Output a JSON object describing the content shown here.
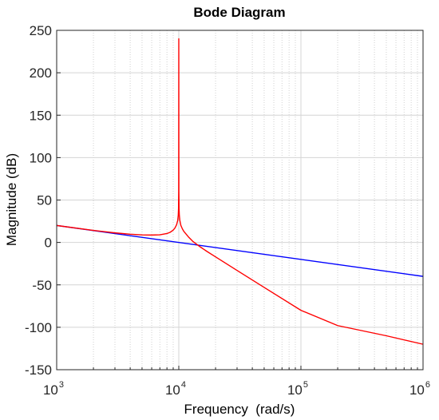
{
  "chart_data": {
    "type": "line",
    "title": "Bode Diagram",
    "xlabel": "Frequency  (rad/s)",
    "ylabel": "Magnitude (dB)",
    "x_scale": "log",
    "xlim": [
      1000,
      1000000
    ],
    "ylim": [
      -150,
      250
    ],
    "x_ticks": [
      {
        "base": "10",
        "exp": "3"
      },
      {
        "base": "10",
        "exp": "4"
      },
      {
        "base": "10",
        "exp": "5"
      },
      {
        "base": "10",
        "exp": "6"
      }
    ],
    "y_ticks": [
      "250",
      "200",
      "150",
      "100",
      "50",
      "0",
      "-50",
      "-100",
      "-150"
    ],
    "grid": true,
    "series": [
      {
        "color": "#0000ff",
        "x": [
          1000,
          1000000
        ],
        "y": [
          20,
          -40
        ]
      },
      {
        "color": "#ff0000",
        "x": [
          1000,
          2000,
          3000,
          4000,
          5000,
          6000,
          7000,
          8000,
          8500,
          9000,
          9300,
          9600,
          9800,
          9900,
          9950,
          9980,
          10000,
          10020,
          10050,
          10100,
          10200,
          10400,
          10700,
          11000,
          12000,
          13000,
          15000,
          17000,
          20000,
          30000,
          50000,
          100000,
          200000,
          500000,
          1000000
        ],
        "y": [
          20,
          14.2,
          11.3,
          9.7,
          8.9,
          8.7,
          9.0,
          10.5,
          12,
          14.5,
          17,
          21,
          26,
          32,
          40,
          60,
          240,
          60,
          40,
          32,
          26,
          20,
          16,
          13,
          6.5,
          1.4,
          -5.3,
          -10.6,
          -17,
          -33,
          -53,
          -80,
          -98,
          -110,
          -120
        ]
      }
    ]
  }
}
